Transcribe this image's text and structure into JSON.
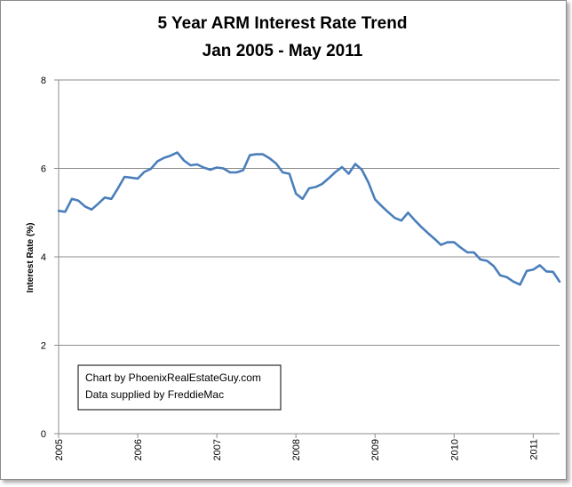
{
  "chart_data": {
    "type": "line",
    "title_lines": [
      "5 Year ARM Interest Rate Trend",
      "Jan 2005 - May 2011"
    ],
    "ylabel": "Interest Rate (%)",
    "xlabel": "",
    "ylim": [
      0,
      8
    ],
    "yticks": [
      "0",
      "2",
      "4",
      "6",
      "8"
    ],
    "xlim": [
      2005.0,
      2011.333
    ],
    "xticks": [
      "2005",
      "2006",
      "2007",
      "2008",
      "2009",
      "2010",
      "2011"
    ],
    "grid": "horizontal",
    "line_color": "#4a7ebb",
    "annotation_lines": [
      "Chart by PhoenixRealEstateGuy.com",
      "Data supplied by FreddieMac"
    ],
    "series": [
      {
        "x": [
          2005.0,
          2005.083,
          2005.167,
          2005.25,
          2005.333,
          2005.417,
          2005.5,
          2005.583,
          2005.667,
          2005.75,
          2005.833,
          2005.917,
          2006.0,
          2006.083,
          2006.167,
          2006.25,
          2006.333,
          2006.417,
          2006.5,
          2006.583,
          2006.667,
          2006.75,
          2006.833,
          2006.917,
          2007.0,
          2007.083,
          2007.167,
          2007.25,
          2007.333,
          2007.417,
          2007.5,
          2007.583,
          2007.667,
          2007.75,
          2007.833,
          2007.917,
          2008.0,
          2008.083,
          2008.167,
          2008.25,
          2008.333,
          2008.417,
          2008.5,
          2008.583,
          2008.667,
          2008.75,
          2008.833,
          2008.917,
          2009.0,
          2009.083,
          2009.167,
          2009.25,
          2009.333,
          2009.417,
          2009.5,
          2009.583,
          2009.667,
          2009.75,
          2009.833,
          2009.917,
          2010.0,
          2010.083,
          2010.167,
          2010.25,
          2010.333,
          2010.417,
          2010.5,
          2010.583,
          2010.667,
          2010.75,
          2010.833,
          2010.917,
          2011.0,
          2011.083,
          2011.167,
          2011.25,
          2011.333
        ],
        "y": [
          5.04,
          5.02,
          5.31,
          5.27,
          5.14,
          5.07,
          5.2,
          5.34,
          5.31,
          5.55,
          5.81,
          5.79,
          5.77,
          5.92,
          5.99,
          6.16,
          6.24,
          6.29,
          6.36,
          6.18,
          6.07,
          6.09,
          6.02,
          5.97,
          6.02,
          6.0,
          5.91,
          5.91,
          5.96,
          6.3,
          6.32,
          6.32,
          6.23,
          6.11,
          5.91,
          5.88,
          5.43,
          5.31,
          5.55,
          5.58,
          5.65,
          5.78,
          5.92,
          6.03,
          5.88,
          6.1,
          5.97,
          5.68,
          5.3,
          5.15,
          5.01,
          4.88,
          4.82,
          5.0,
          4.83,
          4.68,
          4.54,
          4.41,
          4.27,
          4.33,
          4.33,
          4.21,
          4.1,
          4.1,
          3.94,
          3.91,
          3.79,
          3.58,
          3.54,
          3.44,
          3.37,
          3.68,
          3.71,
          3.81,
          3.67,
          3.66,
          3.44
        ]
      }
    ]
  }
}
